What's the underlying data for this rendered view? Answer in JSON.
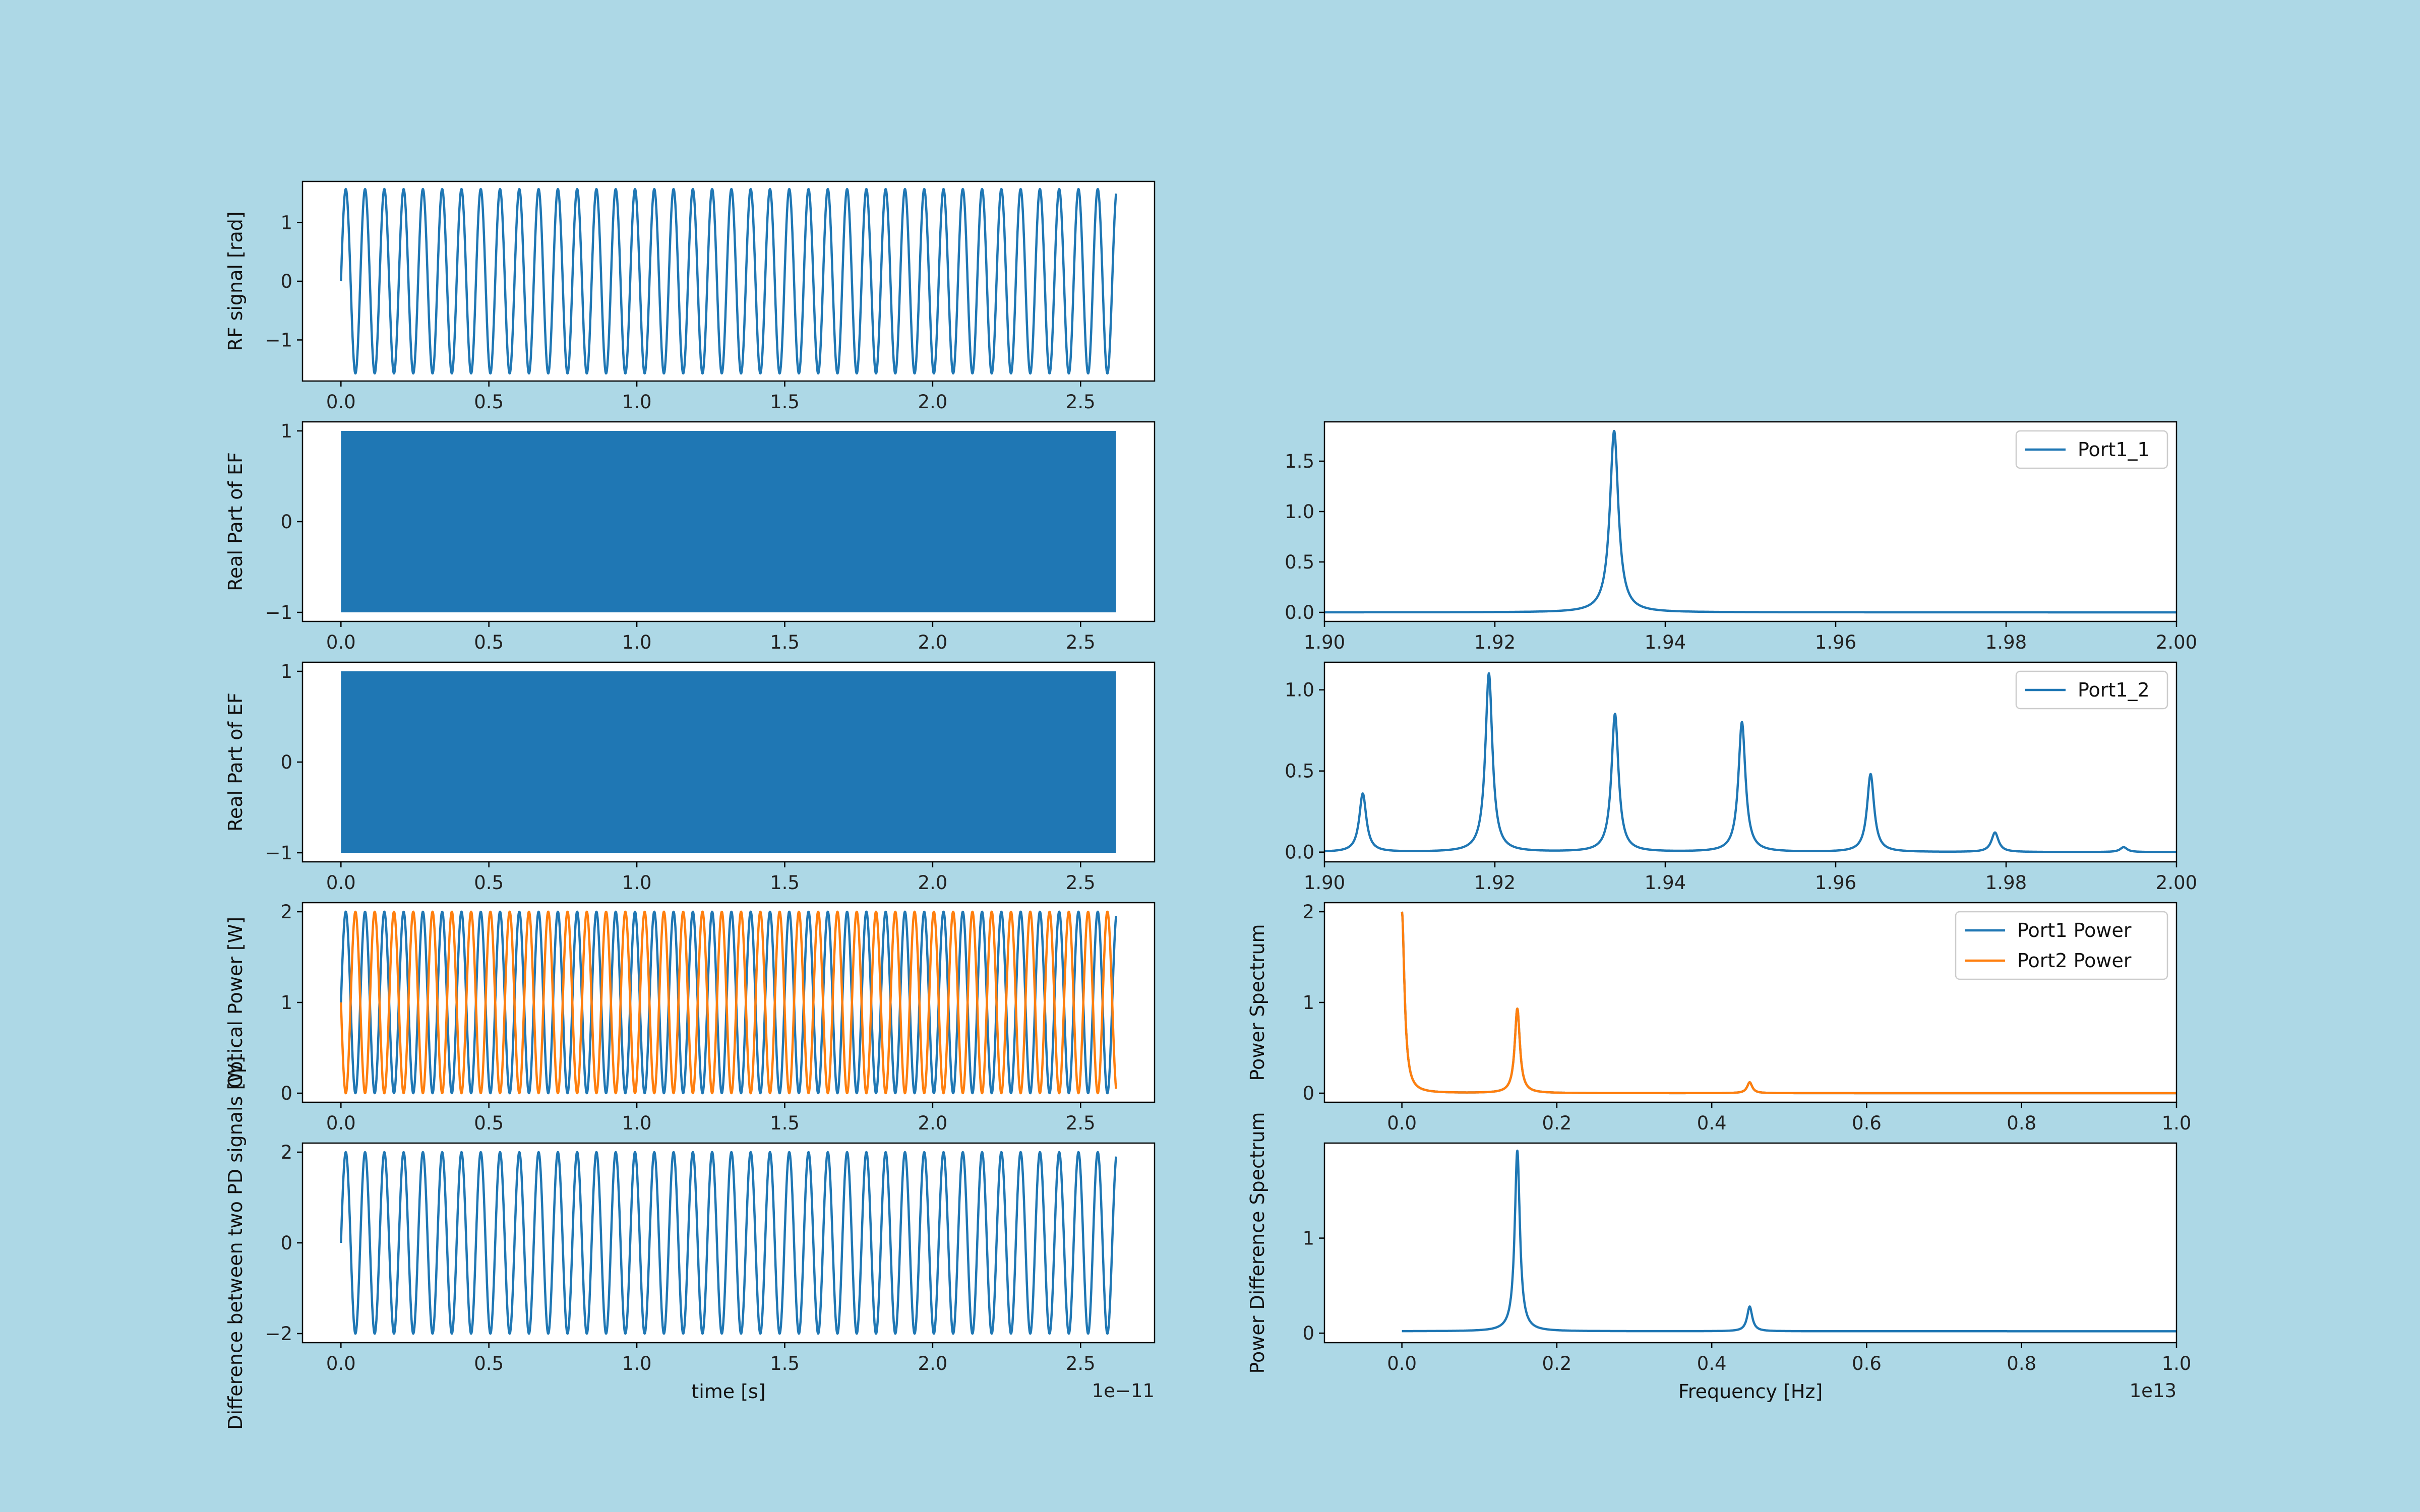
{
  "colors": {
    "figure_bg": "#add8e6",
    "axes_bg": "#ffffff",
    "c0": "#1f77b4",
    "c1": "#ff7f0e"
  },
  "chart_data": [
    {
      "id": "rf",
      "type": "line",
      "ylabel": "RF signal [rad]",
      "xlabel": "",
      "xlim": [
        -0.13,
        2.75
      ],
      "ylim": [
        -1.7,
        1.7
      ],
      "xticks": [
        0.0,
        0.5,
        1.0,
        1.5,
        2.0,
        2.5
      ],
      "xtick_labels": [
        "0.0",
        "0.5",
        "1.0",
        "1.5",
        "2.0",
        "2.5"
      ],
      "yticks": [
        -1,
        0,
        1
      ],
      "ytick_labels": [
        "−1",
        "0",
        "1"
      ],
      "series": [
        {
          "shape": "sine",
          "color": "c0",
          "x_start": 0.0,
          "x_end": 2.62,
          "amplitude": 1.57,
          "offset": 0,
          "cycles": 40.2,
          "phase": 0
        }
      ]
    },
    {
      "id": "ef1",
      "type": "line",
      "ylabel": "Real Part of EF",
      "xlabel": "",
      "xlim": [
        -0.13,
        2.75
      ],
      "ylim": [
        -1.1,
        1.1
      ],
      "xticks": [
        0.0,
        0.5,
        1.0,
        1.5,
        2.0,
        2.5
      ],
      "xtick_labels": [
        "0.0",
        "0.5",
        "1.0",
        "1.5",
        "2.0",
        "2.5"
      ],
      "yticks": [
        -1,
        0,
        1
      ],
      "ytick_labels": [
        "−1",
        "0",
        "1"
      ],
      "series": [
        {
          "shape": "band",
          "color": "c0",
          "x_start": 0.0,
          "x_end": 2.62,
          "low": -1.0,
          "high": 1.0
        }
      ]
    },
    {
      "id": "ef2",
      "type": "line",
      "ylabel": "Real Part of EF",
      "xlabel": "",
      "xlim": [
        -0.13,
        2.75
      ],
      "ylim": [
        -1.1,
        1.1
      ],
      "xticks": [
        0.0,
        0.5,
        1.0,
        1.5,
        2.0,
        2.5
      ],
      "xtick_labels": [
        "0.0",
        "0.5",
        "1.0",
        "1.5",
        "2.0",
        "2.5"
      ],
      "yticks": [
        -1,
        0,
        1
      ],
      "ytick_labels": [
        "−1",
        "0",
        "1"
      ],
      "series": [
        {
          "shape": "band",
          "color": "c0",
          "x_start": 0.0,
          "x_end": 2.62,
          "low": -1.0,
          "high": 1.0
        }
      ]
    },
    {
      "id": "opt",
      "type": "line",
      "ylabel": "Optical Power [W]",
      "xlabel": "",
      "xlim": [
        -0.13,
        2.75
      ],
      "ylim": [
        -0.1,
        2.1
      ],
      "xticks": [
        0.0,
        0.5,
        1.0,
        1.5,
        2.0,
        2.5
      ],
      "xtick_labels": [
        "0.0",
        "0.5",
        "1.0",
        "1.5",
        "2.0",
        "2.5"
      ],
      "yticks": [
        0,
        1,
        2
      ],
      "ytick_labels": [
        "0",
        "1",
        "2"
      ],
      "series": [
        {
          "shape": "sine",
          "color": "c0",
          "x_start": 0.0,
          "x_end": 2.62,
          "amplitude": 1.0,
          "offset": 1.0,
          "cycles": 40.2,
          "phase": 0
        },
        {
          "shape": "sine",
          "color": "c1",
          "x_start": 0.0,
          "x_end": 2.62,
          "amplitude": 1.0,
          "offset": 1.0,
          "cycles": 40.2,
          "phase": 3.14159
        }
      ]
    },
    {
      "id": "diff",
      "type": "line",
      "ylabel": "Difference between two PD signals [W]",
      "xlabel": "time [s]",
      "offset_text": "1e−11",
      "xlim": [
        -0.13,
        2.75
      ],
      "ylim": [
        -2.2,
        2.2
      ],
      "xticks": [
        0.0,
        0.5,
        1.0,
        1.5,
        2.0,
        2.5
      ],
      "xtick_labels": [
        "0.0",
        "0.5",
        "1.0",
        "1.5",
        "2.0",
        "2.5"
      ],
      "yticks": [
        -2,
        0,
        2
      ],
      "ytick_labels": [
        "−2",
        "0",
        "2"
      ],
      "series": [
        {
          "shape": "sine",
          "color": "c0",
          "x_start": 0.0,
          "x_end": 2.62,
          "amplitude": 2.0,
          "offset": 0,
          "cycles": 40.2,
          "phase": 0
        }
      ]
    },
    {
      "id": "spec1",
      "type": "line",
      "ylabel": "",
      "xlabel": "",
      "legend": "top-right",
      "xlim": [
        1.9,
        2.0
      ],
      "ylim": [
        -0.09,
        1.89
      ],
      "xticks": [
        1.9,
        1.92,
        1.94,
        1.96,
        1.98,
        2.0
      ],
      "xtick_labels": [
        "1.90",
        "1.92",
        "1.94",
        "1.96",
        "1.98",
        "2.00"
      ],
      "yticks": [
        0,
        0.5,
        1.0,
        1.5
      ],
      "ytick_labels": [
        "0.0",
        "0.5",
        "1.0",
        "1.5"
      ],
      "series": [
        {
          "name": "Port1_1",
          "shape": "peaks",
          "color": "c0",
          "x_start": 1.9,
          "x_end": 2.0,
          "baseline": 0.0,
          "width": 0.0006,
          "peaks": [
            [
              1.934,
              1.8
            ]
          ]
        }
      ]
    },
    {
      "id": "spec2",
      "type": "line",
      "ylabel": "",
      "xlabel": "",
      "legend": "top-right",
      "xlim": [
        1.9,
        2.0
      ],
      "ylim": [
        -0.06,
        1.17
      ],
      "xticks": [
        1.9,
        1.92,
        1.94,
        1.96,
        1.98,
        2.0
      ],
      "xtick_labels": [
        "1.90",
        "1.92",
        "1.94",
        "1.96",
        "1.98",
        "2.00"
      ],
      "yticks": [
        0,
        0.5,
        1.0
      ],
      "ytick_labels": [
        "0.0",
        "0.5",
        "1.0"
      ],
      "series": [
        {
          "name": "Port1_2",
          "shape": "peaks",
          "color": "c0",
          "x_start": 1.9,
          "x_end": 2.0,
          "baseline": 0.0,
          "width": 0.0005,
          "peaks": [
            [
              1.9045,
              0.36
            ],
            [
              1.9193,
              1.1
            ],
            [
              1.9341,
              0.85
            ],
            [
              1.949,
              0.8
            ],
            [
              1.9641,
              0.48
            ],
            [
              1.9787,
              0.12
            ],
            [
              1.9938,
              0.03
            ]
          ]
        }
      ]
    },
    {
      "id": "pspec",
      "type": "line",
      "ylabel": "Power Spectrum",
      "xlabel": "",
      "legend": "top-right",
      "xlim": [
        -0.1,
        1.0
      ],
      "ylim": [
        -0.1,
        2.1
      ],
      "xticks": [
        0.0,
        0.2,
        0.4,
        0.6,
        0.8,
        1.0
      ],
      "xtick_labels": [
        "0.0",
        "0.2",
        "0.4",
        "0.6",
        "0.8",
        "1.0"
      ],
      "yticks": [
        0,
        1,
        2
      ],
      "ytick_labels": [
        "0",
        "1",
        "2"
      ],
      "series": [
        {
          "name": "Port1 Power",
          "shape": "peaks",
          "color": "c0",
          "x_start": 0.0,
          "x_end": 1.0,
          "baseline": 0.0,
          "width": 0.004,
          "peaks": [
            [
              0.0,
              2.0
            ],
            [
              0.149,
              0.93
            ],
            [
              0.449,
              0.12
            ]
          ]
        },
        {
          "name": "Port2 Power",
          "shape": "peaks",
          "color": "c1",
          "x_start": 0.0,
          "x_end": 1.0,
          "baseline": 0.0,
          "width": 0.004,
          "peaks": [
            [
              0.0,
              2.0
            ],
            [
              0.149,
              0.93
            ],
            [
              0.449,
              0.12
            ]
          ]
        }
      ]
    },
    {
      "id": "pdspec",
      "type": "line",
      "ylabel": "Power Difference Spectrum",
      "xlabel": "Frequency [Hz]",
      "offset_text": "1e13",
      "xlim": [
        -0.1,
        1.0
      ],
      "ylim": [
        -0.1,
        2.0
      ],
      "xticks": [
        0.0,
        0.2,
        0.4,
        0.6,
        0.8,
        1.0
      ],
      "xtick_labels": [
        "0.0",
        "0.2",
        "0.4",
        "0.6",
        "0.8",
        "1.0"
      ],
      "yticks": [
        0,
        1
      ],
      "ytick_labels": [
        "0",
        "1"
      ],
      "series": [
        {
          "shape": "peaks",
          "color": "c0",
          "x_start": 0.0,
          "x_end": 1.0,
          "baseline": 0.02,
          "width": 0.004,
          "peaks": [
            [
              0.149,
              1.9
            ],
            [
              0.449,
              0.26
            ]
          ]
        }
      ]
    }
  ]
}
